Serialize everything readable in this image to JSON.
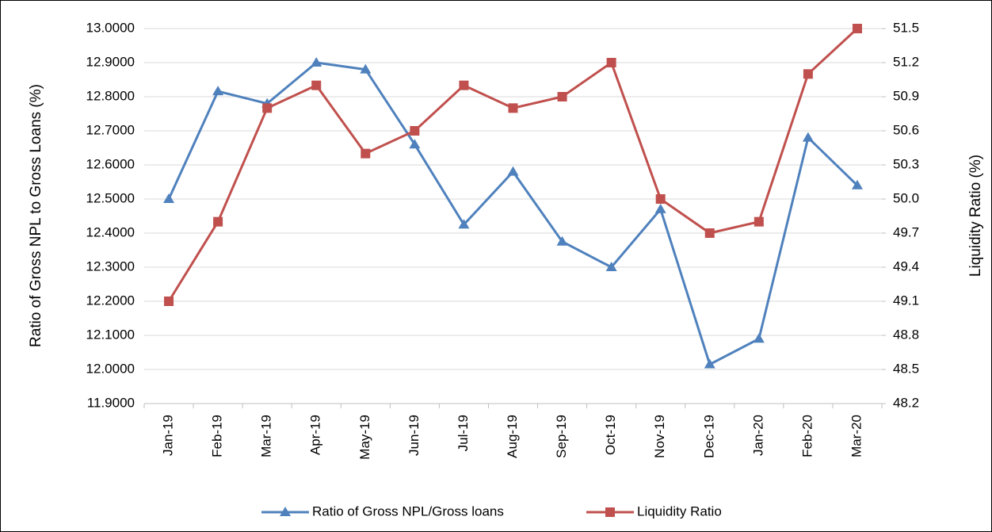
{
  "chart_data": {
    "type": "line",
    "categories": [
      "Jan-19",
      "Feb-19",
      "Mar-19",
      "Apr-19",
      "May-19",
      "Jun-19",
      "Jul-19",
      "Aug-19",
      "Sep-19",
      "Oct-19",
      "Nov-19",
      "Dec-19",
      "Jan-20",
      "Feb-20",
      "Mar-20"
    ],
    "y_label": "Ratio of Gross NPL to Gross Loans (%)",
    "y2_label": "Liquidity Ratio (%)",
    "series": [
      {
        "name": "Ratio of Gross NPL/Gross loans",
        "color": "#4f81bd",
        "marker": "triangle",
        "values": [
          12.5,
          12.816,
          12.78,
          12.9,
          12.88,
          12.66,
          12.425,
          12.58,
          12.375,
          12.3,
          12.47,
          12.015,
          12.09,
          12.68,
          12.54
        ]
      },
      {
        "name": "Liquidity Ratio",
        "color": "#c0504d",
        "marker": "square",
        "axis": "y2",
        "values": [
          49.1,
          49.8,
          50.8,
          51.0,
          50.4,
          50.6,
          51.0,
          50.8,
          50.9,
          51.2,
          50.0,
          49.7,
          49.8,
          51.1,
          51.5
        ]
      }
    ],
    "ylim": [
      11.9,
      13.0
    ],
    "yticks": [
      {
        "value": 11.9,
        "label": "11.9000"
      },
      {
        "value": 12.0,
        "label": "12.0000"
      },
      {
        "value": 12.1,
        "label": "12.1000"
      },
      {
        "value": 12.2,
        "label": "12.2000"
      },
      {
        "value": 12.3,
        "label": "12.3000"
      },
      {
        "value": 12.4,
        "label": "12.4000"
      },
      {
        "value": 12.5,
        "label": "12.5000"
      },
      {
        "value": 12.6,
        "label": "12.6000"
      },
      {
        "value": 12.7,
        "label": "12.7000"
      },
      {
        "value": 12.8,
        "label": "12.8000"
      },
      {
        "value": 12.9,
        "label": "12.9000"
      },
      {
        "value": 13.0,
        "label": "13.0000"
      }
    ],
    "y2lim": [
      48.2,
      51.5
    ],
    "y2ticks": [
      48.2,
      48.5,
      48.8,
      49.1,
      49.4,
      49.7,
      {
        "value": 50,
        "label": "50.0"
      },
      50.3,
      50.6,
      50.9,
      51.2,
      51.5
    ],
    "grid": true,
    "legend": "bottom"
  }
}
